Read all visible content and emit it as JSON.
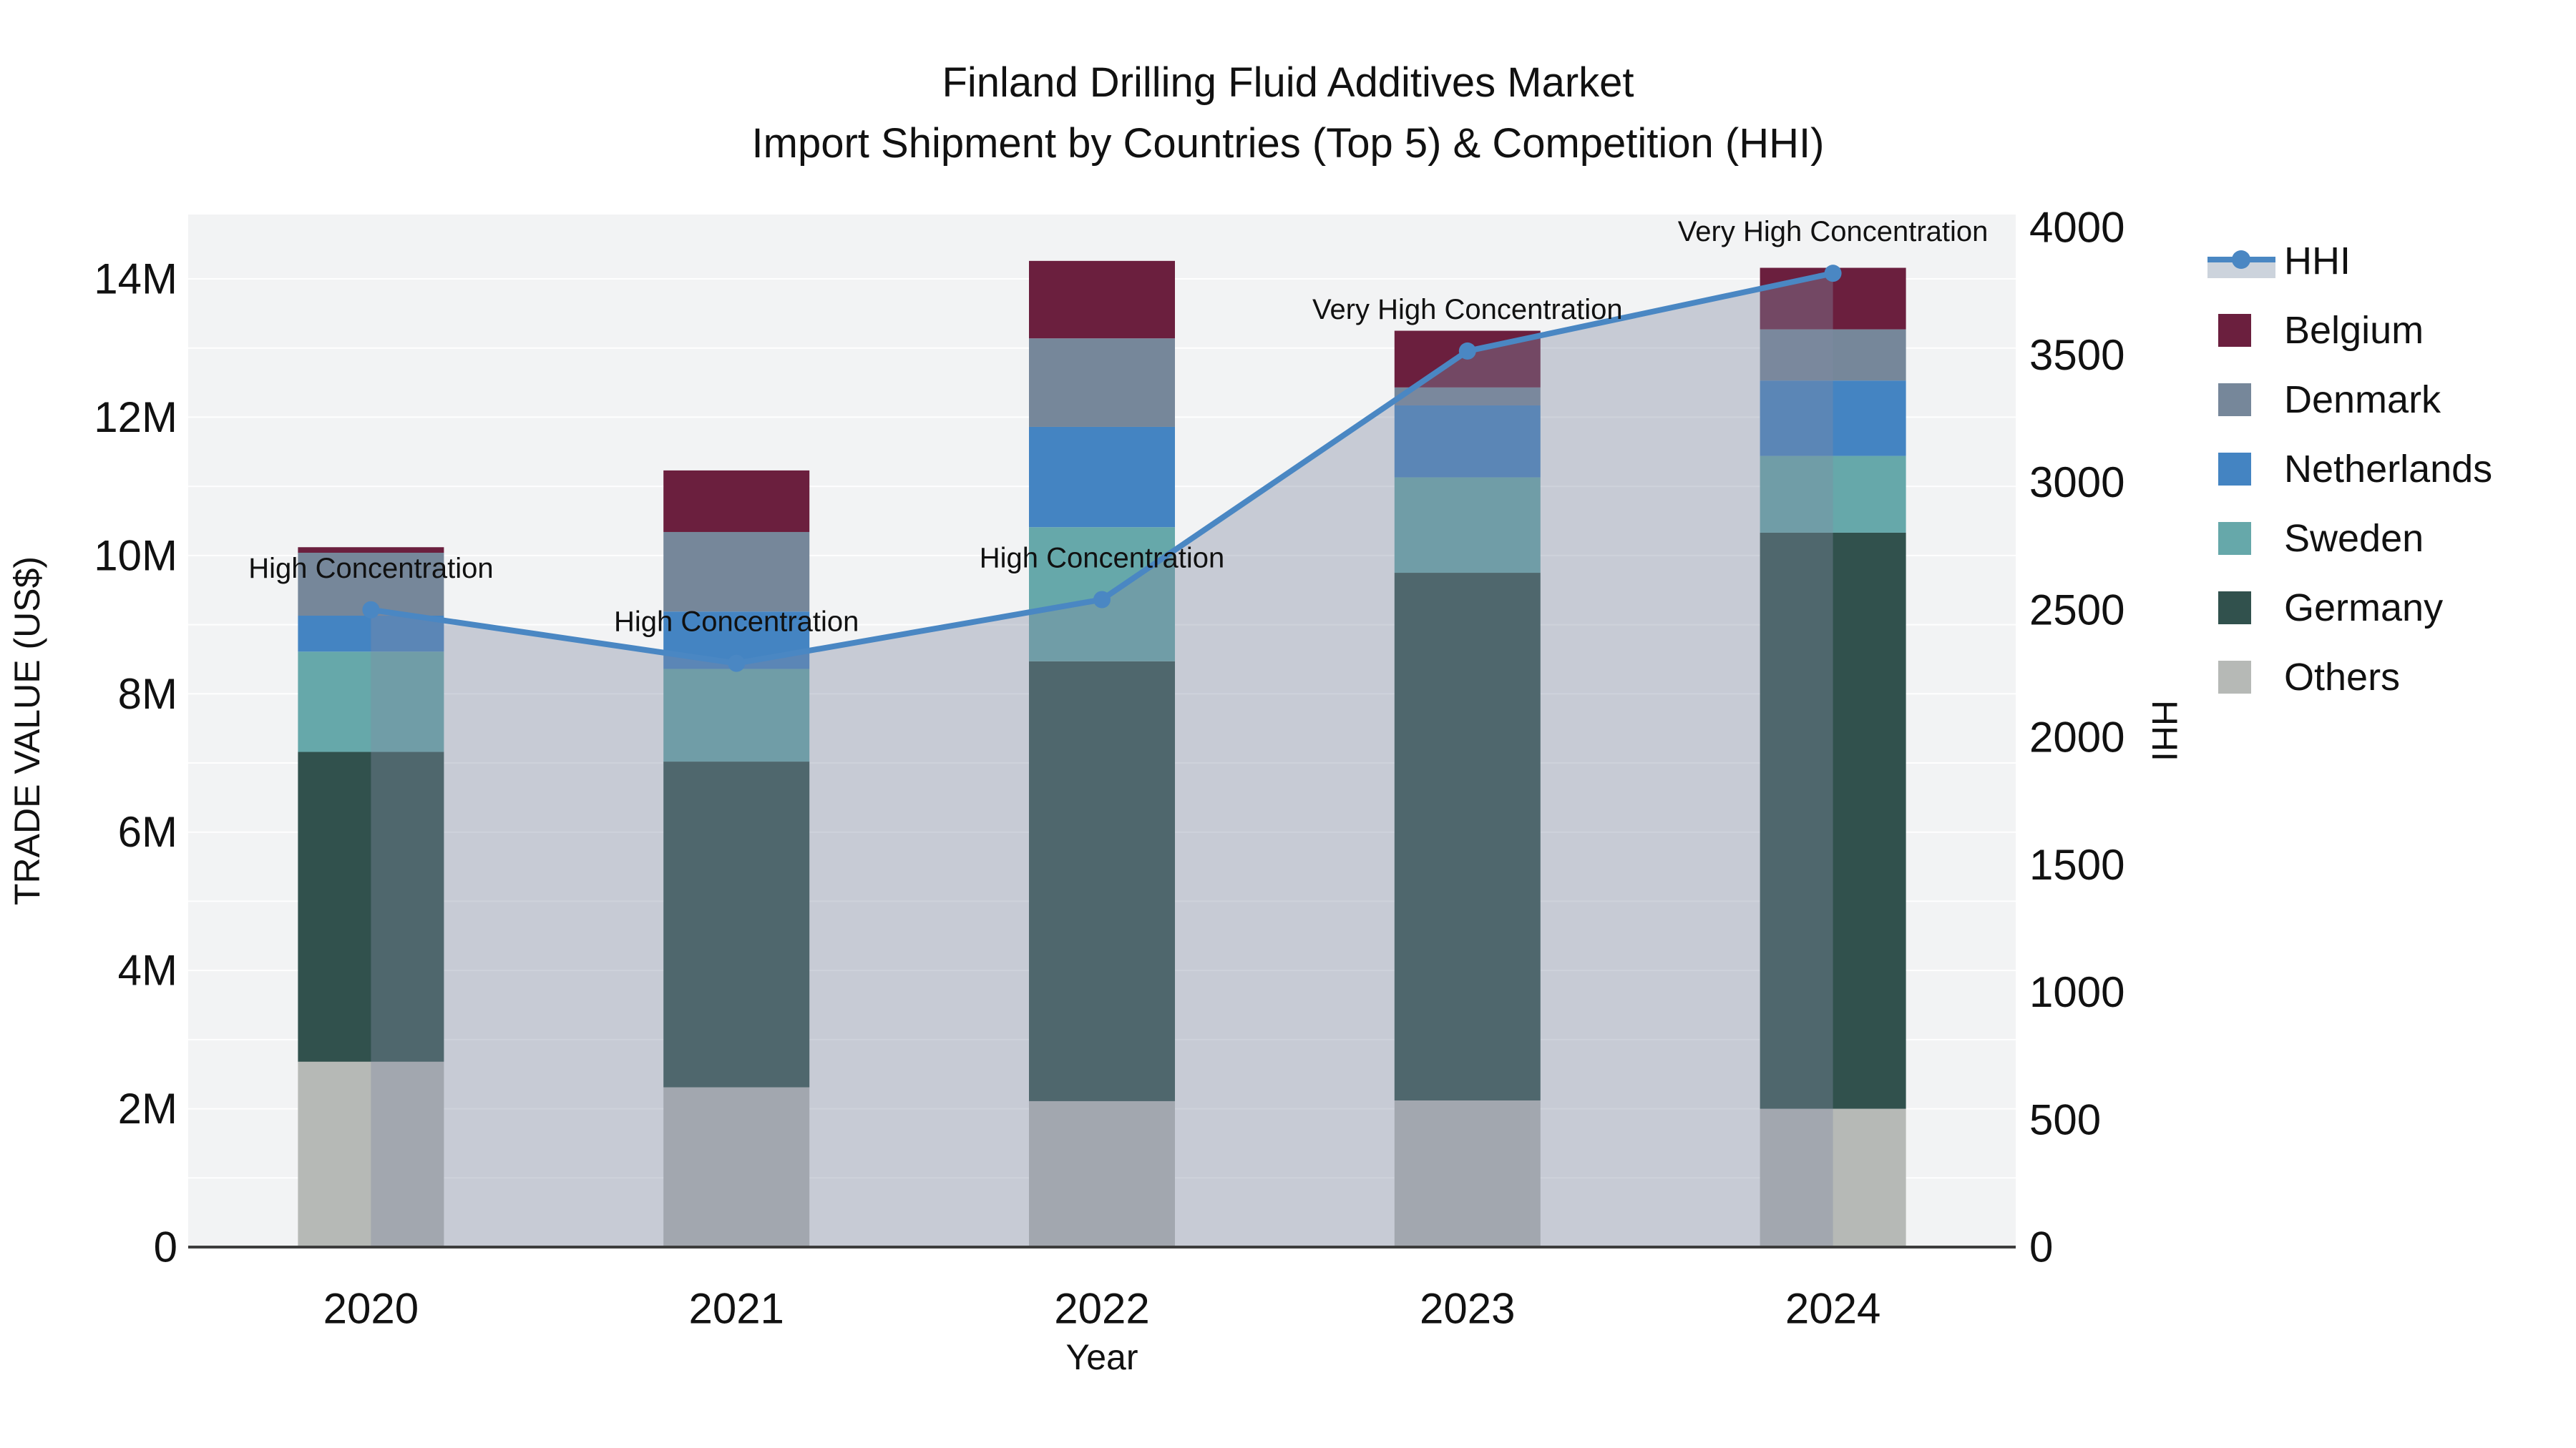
{
  "title": {
    "line1": "Finland Drilling Fluid Additives Market",
    "line2": "Import Shipment by Countries (Top 5) & Competition (HHI)"
  },
  "axes": {
    "x": {
      "label": "Year",
      "ticks": [
        "2020",
        "2021",
        "2022",
        "2023",
        "2024"
      ]
    },
    "y_left": {
      "label": "TRADE VALUE (US$)",
      "ticks": [
        "0",
        "2M",
        "4M",
        "6M",
        "8M",
        "10M",
        "12M",
        "14M"
      ],
      "tick_values_musd": [
        0,
        2,
        4,
        6,
        8,
        10,
        12,
        14
      ],
      "max_musd": 14
    },
    "y_right": {
      "label": "HHI",
      "ticks": [
        "0",
        "500",
        "1000",
        "1500",
        "2000",
        "2500",
        "3000",
        "3500",
        "4000"
      ],
      "tick_values": [
        0,
        500,
        1000,
        1500,
        2000,
        2500,
        3000,
        3500,
        4000
      ],
      "max": 4000
    }
  },
  "legend": {
    "items": [
      {
        "label": "HHI",
        "type": "line",
        "color_key": "hhi_line"
      },
      {
        "label": "Belgium",
        "type": "square",
        "color_key": "belgium"
      },
      {
        "label": "Denmark",
        "type": "square",
        "color_key": "denmark"
      },
      {
        "label": "Netherlands",
        "type": "square",
        "color_key": "netherlands"
      },
      {
        "label": "Sweden",
        "type": "square",
        "color_key": "sweden"
      },
      {
        "label": "Germany",
        "type": "square",
        "color_key": "germany"
      },
      {
        "label": "Others",
        "type": "square",
        "color_key": "others"
      }
    ]
  },
  "colors": {
    "belgium": "#6b1f3e",
    "denmark": "#76879a",
    "netherlands": "#4484c2",
    "sweden": "#66a8aa",
    "germany": "#31514d",
    "others": "#b6b9b6",
    "hhi_line": "#4a87c3",
    "hhi_area_fill": "rgba(128,140,162,0.38)",
    "plot_background": "#f2f3f4",
    "gridline": "rgba(255,255,255,0.9)",
    "axis_line": "#3d3d3d",
    "text": "#111111"
  },
  "chart_data": {
    "type": [
      "bar",
      "line"
    ],
    "description": "Stacked bars = import trade value by country (left axis, US$ millions); line = HHI competition index (right axis).",
    "categories": [
      "2020",
      "2021",
      "2022",
      "2023",
      "2024"
    ],
    "unit_bars": "million US$",
    "bar_series_bottom_to_top": [
      {
        "name": "Others",
        "color_key": "others",
        "values_musd": [
          2.68,
          2.31,
          2.11,
          2.12,
          2.0
        ]
      },
      {
        "name": "Germany",
        "color_key": "germany",
        "values_musd": [
          4.48,
          4.71,
          6.36,
          7.63,
          8.33
        ]
      },
      {
        "name": "Sweden",
        "color_key": "sweden",
        "values_musd": [
          1.45,
          1.34,
          1.94,
          1.38,
          1.11
        ]
      },
      {
        "name": "Netherlands",
        "color_key": "netherlands",
        "values_musd": [
          0.52,
          0.83,
          1.45,
          1.04,
          1.09
        ]
      },
      {
        "name": "Denmark",
        "color_key": "denmark",
        "values_musd": [
          0.91,
          1.15,
          1.28,
          0.26,
          0.74
        ]
      },
      {
        "name": "Belgium",
        "color_key": "belgium",
        "values_musd": [
          0.08,
          0.89,
          1.12,
          0.82,
          0.89
        ]
      }
    ],
    "bar_totals_musd": [
      10.12,
      11.23,
      14.26,
      13.25,
      14.16
    ],
    "line_series": {
      "name": "HHI",
      "values": [
        2500,
        2290,
        2540,
        3515,
        3820
      ],
      "axis": "right"
    },
    "annotations": [
      {
        "category": "2020",
        "text": "High Concentration"
      },
      {
        "category": "2021",
        "text": "High Concentration"
      },
      {
        "category": "2022",
        "text": "High Concentration"
      },
      {
        "category": "2023",
        "text": "Very High Concentration"
      },
      {
        "category": "2024",
        "text": "Very High Concentration"
      }
    ],
    "layout_hints": {
      "legend_position": "right",
      "grid": "horizontal, 1M intervals",
      "hhi_area_fill_under_line": true,
      "ylim_left_musd": [
        0,
        14.93
      ],
      "ylim_right": [
        0,
        4100
      ]
    }
  }
}
